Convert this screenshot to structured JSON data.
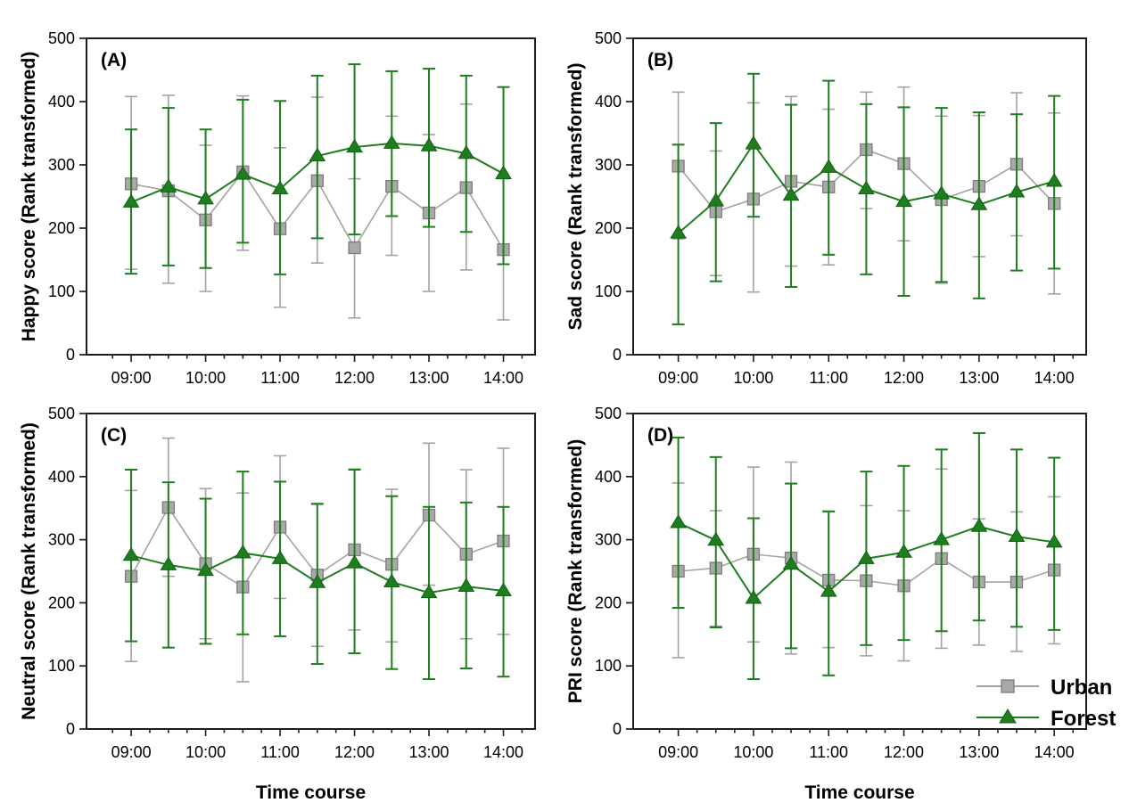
{
  "figure": {
    "background": "#ffffff",
    "x_axis_title": "Time course",
    "x_major_tick_labels": [
      "09:00",
      "10:00",
      "11:00",
      "12:00",
      "13:00",
      "14:00"
    ],
    "y_tick_labels": [
      "0",
      "100",
      "200",
      "300",
      "400",
      "500"
    ]
  },
  "styles": {
    "urban_fill": "#a9a9a9",
    "urban_edge": "#7d7d7d",
    "urban_line": "#a3a3a3",
    "forest_fill": "#1e7d1e",
    "forest_edge": "#116111",
    "frame_color": "#1c1c1c",
    "text_color": "#000000"
  },
  "legend": {
    "items": [
      {
        "label": "Urban",
        "marker": "square",
        "color": "#a9a9a9"
      },
      {
        "label": "Forest",
        "marker": "triangle",
        "color": "#1e7d1e"
      }
    ]
  },
  "chart_data": [
    {
      "type": "line",
      "panel_label": "(A)",
      "ylabel": "Happy score (Rank transformed)",
      "xlabel": "Time course",
      "show_xlabel": false,
      "show_legend": false,
      "ylim": [
        0,
        500
      ],
      "y_ticks": [
        0,
        100,
        200,
        300,
        400,
        500
      ],
      "x": [
        "09:00",
        "09:30",
        "10:00",
        "10:30",
        "11:00",
        "11:30",
        "12:00",
        "12:30",
        "13:00",
        "13:30",
        "14:00"
      ],
      "x_major_tick_labels": [
        "09:00",
        "10:00",
        "11:00",
        "12:00",
        "13:00",
        "14:00"
      ],
      "series": [
        {
          "name": "Urban",
          "values": [
            270,
            259,
            213,
            289,
            199,
            275,
            169,
            266,
            224,
            264,
            166
          ],
          "err_lo": [
            135,
            113,
            100,
            165,
            75,
            145,
            58,
            157,
            100,
            134,
            55
          ],
          "err_hi": [
            408,
            410,
            331,
            409,
            327,
            407,
            278,
            377,
            348,
            396,
            278
          ]
        },
        {
          "name": "Forest",
          "values": [
            241,
            265,
            246,
            285,
            262,
            314,
            328,
            334,
            330,
            318,
            286
          ],
          "err_lo": [
            128,
            141,
            137,
            177,
            127,
            184,
            190,
            219,
            202,
            194,
            143
          ],
          "err_hi": [
            356,
            390,
            356,
            403,
            401,
            441,
            459,
            448,
            452,
            441,
            423
          ]
        }
      ]
    },
    {
      "type": "line",
      "panel_label": "(B)",
      "ylabel": "Sad score (Rank transformed)",
      "xlabel": "Time course",
      "show_xlabel": false,
      "show_legend": false,
      "ylim": [
        0,
        500
      ],
      "y_ticks": [
        0,
        100,
        200,
        300,
        400,
        500
      ],
      "x": [
        "09:00",
        "09:30",
        "10:00",
        "10:30",
        "11:00",
        "11:30",
        "12:00",
        "12:30",
        "13:00",
        "13:30",
        "14:00"
      ],
      "x_major_tick_labels": [
        "09:00",
        "10:00",
        "11:00",
        "12:00",
        "13:00",
        "14:00"
      ],
      "series": [
        {
          "name": "Urban",
          "values": [
            298,
            226,
            246,
            274,
            265,
            324,
            302,
            245,
            266,
            301,
            239
          ],
          "err_lo": [
            183,
            125,
            99,
            140,
            142,
            231,
            180,
            113,
            155,
            188,
            96
          ],
          "err_hi": [
            415,
            322,
            398,
            408,
            388,
            415,
            423,
            377,
            378,
            414,
            382
          ]
        },
        {
          "name": "Forest",
          "values": [
            192,
            243,
            333,
            252,
            296,
            262,
            242,
            254,
            237,
            257,
            274
          ],
          "err_lo": [
            48,
            116,
            218,
            107,
            158,
            127,
            93,
            115,
            89,
            133,
            136
          ],
          "err_hi": [
            332,
            366,
            444,
            395,
            433,
            396,
            391,
            390,
            383,
            380,
            409
          ]
        }
      ]
    },
    {
      "type": "line",
      "panel_label": "(C)",
      "ylabel": "Neutral score (Rank transformed)",
      "xlabel": "Time course",
      "show_xlabel": true,
      "show_legend": false,
      "ylim": [
        0,
        500
      ],
      "y_ticks": [
        0,
        100,
        200,
        300,
        400,
        500
      ],
      "x": [
        "09:00",
        "09:30",
        "10:00",
        "10:30",
        "11:00",
        "11:30",
        "12:00",
        "12:30",
        "13:00",
        "13:30",
        "14:00"
      ],
      "x_major_tick_labels": [
        "09:00",
        "10:00",
        "11:00",
        "12:00",
        "13:00",
        "14:00"
      ],
      "series": [
        {
          "name": "Urban",
          "values": [
            242,
            351,
            262,
            225,
            320,
            244,
            284,
            261,
            339,
            277,
            298
          ],
          "err_lo": [
            107,
            242,
            143,
            75,
            207,
            131,
            157,
            138,
            228,
            143,
            150
          ],
          "err_hi": [
            378,
            461,
            381,
            374,
            433,
            356,
            412,
            380,
            453,
            411,
            445
          ]
        },
        {
          "name": "Forest",
          "values": [
            275,
            260,
            251,
            279,
            270,
            232,
            263,
            233,
            216,
            226,
            219
          ],
          "err_lo": [
            139,
            129,
            135,
            150,
            147,
            103,
            120,
            95,
            79,
            96,
            83
          ],
          "err_hi": [
            411,
            391,
            365,
            408,
            392,
            357,
            411,
            369,
            352,
            359,
            352
          ]
        }
      ]
    },
    {
      "type": "line",
      "panel_label": "(D)",
      "ylabel": "PRI score (Rank transformed)",
      "xlabel": "Time course",
      "show_xlabel": true,
      "show_legend": true,
      "ylim": [
        0,
        500
      ],
      "y_ticks": [
        0,
        100,
        200,
        300,
        400,
        500
      ],
      "x": [
        "09:00",
        "09:30",
        "10:00",
        "10:30",
        "11:00",
        "11:30",
        "12:00",
        "12:30",
        "13:00",
        "13:30",
        "14:00"
      ],
      "x_major_tick_labels": [
        "09:00",
        "10:00",
        "11:00",
        "12:00",
        "13:00",
        "14:00"
      ],
      "series": [
        {
          "name": "Urban",
          "values": [
            250,
            255,
            277,
            271,
            236,
            235,
            227,
            270,
            233,
            233,
            252
          ],
          "err_lo": [
            113,
            163,
            138,
            119,
            129,
            116,
            108,
            128,
            133,
            123,
            135
          ],
          "err_hi": [
            390,
            346,
            415,
            423,
            344,
            354,
            346,
            412,
            333,
            344,
            368
          ]
        },
        {
          "name": "Forest",
          "values": [
            327,
            299,
            207,
            261,
            218,
            270,
            280,
            300,
            321,
            305,
            296
          ],
          "err_lo": [
            192,
            161,
            79,
            128,
            85,
            133,
            141,
            155,
            172,
            162,
            157
          ],
          "err_hi": [
            462,
            431,
            334,
            389,
            345,
            408,
            417,
            443,
            469,
            443,
            430
          ]
        }
      ]
    }
  ]
}
